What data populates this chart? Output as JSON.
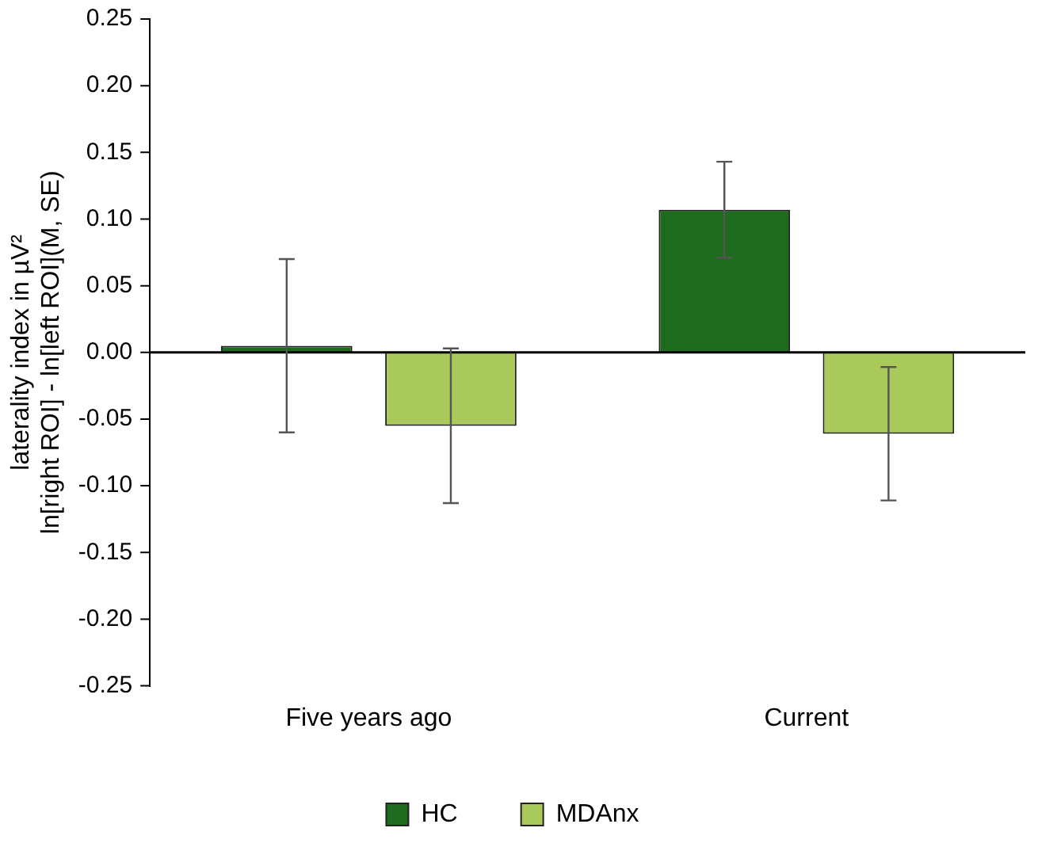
{
  "chart_data": {
    "type": "bar",
    "ylabel": "laterality index in µV²\nln[right ROI] - ln[left ROI](M, SE)",
    "categories": [
      "Five years ago",
      "Current"
    ],
    "series": [
      {
        "name": "HC",
        "color": "#1e6b1e",
        "values": [
          0.005,
          0.107
        ],
        "errors": [
          0.065,
          0.036
        ]
      },
      {
        "name": "MDAnx",
        "color": "#a9c95a",
        "values": [
          -0.055,
          -0.061
        ],
        "errors": [
          0.058,
          0.05
        ]
      }
    ],
    "ylim": [
      -0.25,
      0.25
    ],
    "yticks": [
      {
        "value": -0.25,
        "label": "-0.25"
      },
      {
        "value": -0.2,
        "label": "-0.20"
      },
      {
        "value": -0.15,
        "label": "-0.15"
      },
      {
        "value": -0.1,
        "label": "-0.10"
      },
      {
        "value": -0.05,
        "label": "-0.05"
      },
      {
        "value": 0,
        "label": "0.00"
      },
      {
        "value": 0.05,
        "label": "0.05"
      },
      {
        "value": 0.1,
        "label": "0.10"
      },
      {
        "value": 0.15,
        "label": "0.15"
      },
      {
        "value": 0.2,
        "label": "0.20"
      },
      {
        "value": 0.25,
        "label": "0.25"
      }
    ],
    "ref_lines": [
      {
        "axis": "y",
        "value": 0,
        "color": "#000000"
      }
    ],
    "grid": false,
    "legend": "bottom"
  }
}
